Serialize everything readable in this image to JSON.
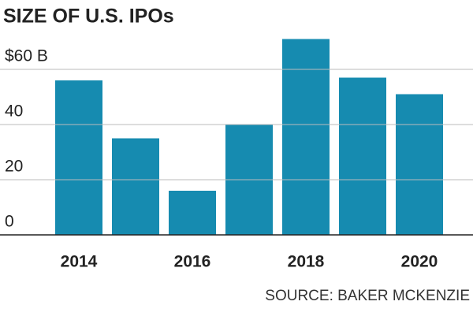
{
  "chart_data": {
    "type": "bar",
    "title": "SIZE OF U.S. IPOs",
    "categories": [
      "2014",
      null,
      "2016",
      null,
      "2018",
      null,
      "2020"
    ],
    "values": [
      56,
      35,
      16,
      40,
      71,
      57,
      51
    ],
    "color": "#168bb0",
    "ylim": [
      0,
      75
    ],
    "yticks": [
      0,
      20,
      40,
      {
        "value": 60,
        "label": "$60 B"
      }
    ],
    "grid": true,
    "source": "SOURCE: BAKER MCKENZIE"
  }
}
